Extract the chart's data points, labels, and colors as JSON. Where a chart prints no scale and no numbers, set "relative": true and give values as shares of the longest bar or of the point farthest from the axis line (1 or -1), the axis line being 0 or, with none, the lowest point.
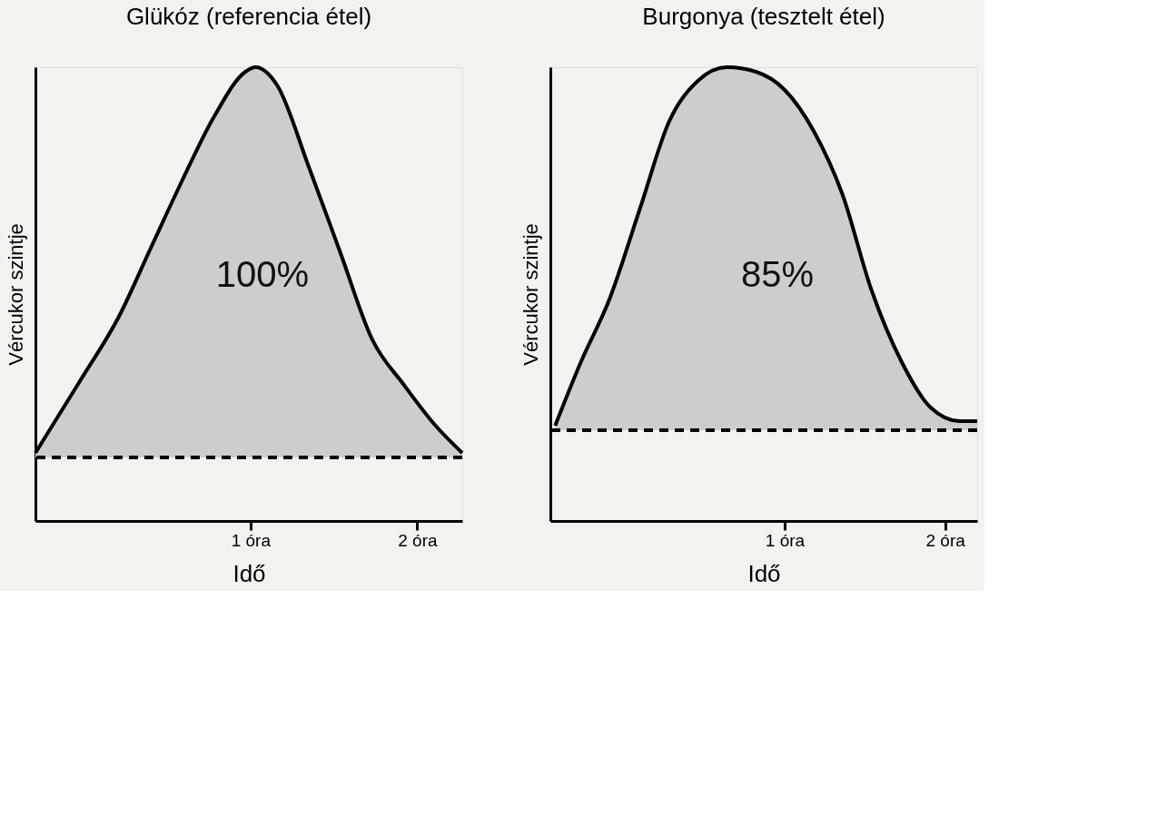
{
  "chart_data": [
    {
      "type": "area",
      "title": "Glükóz (referencia étel)",
      "xlabel": "Idő",
      "ylabel": "Vércukor szintje",
      "relative": true,
      "xlim": [
        -0.29,
        2.27
      ],
      "xticks": [
        {
          "value": 1,
          "label": "1 óra"
        },
        {
          "value": 2,
          "label": "2 óra"
        }
      ],
      "tick_labels": "x",
      "grid": false,
      "x": [
        -0.29,
        -0.02,
        0.21,
        0.4,
        0.59,
        0.78,
        0.97,
        1.03,
        1.16,
        1.35,
        1.54,
        1.73,
        1.92,
        2.11,
        2.27
      ],
      "series": [
        {
          "color": "#cdcdcd",
          "values": [
            0.15,
            0.31,
            0.45,
            0.6,
            0.75,
            0.89,
            0.99,
            1.0,
            0.96,
            0.78,
            0.59,
            0.4,
            0.3,
            0.21,
            0.15
          ]
        }
      ],
      "ref_lines": [
        {
          "axis": "y",
          "value": 0.14,
          "line_style": "dashed"
        }
      ],
      "annotations": [
        "100%"
      ]
    },
    {
      "type": "area",
      "title": "Burgonya (tesztelt étel)",
      "xlabel": "Idő",
      "ylabel": "Vércukor szintje",
      "relative": true,
      "xlim": [
        -0.46,
        2.2
      ],
      "xticks": [
        {
          "value": 1,
          "label": "1 óra"
        },
        {
          "value": 2,
          "label": "2 óra"
        }
      ],
      "tick_labels": "x",
      "grid": false,
      "x": [
        -0.43,
        -0.27,
        -0.09,
        0.1,
        0.28,
        0.46,
        0.64,
        0.82,
        1.0,
        1.18,
        1.36,
        1.54,
        1.73,
        1.91,
        2.09,
        2.2
      ],
      "series": [
        {
          "color": "#cdcdcd",
          "values": [
            0.21,
            0.35,
            0.49,
            0.69,
            0.88,
            0.97,
            1.0,
            0.99,
            0.95,
            0.86,
            0.72,
            0.51,
            0.35,
            0.25,
            0.22,
            0.22
          ]
        }
      ],
      "ref_lines": [
        {
          "axis": "y",
          "value": 0.2,
          "line_style": "dashed"
        }
      ],
      "annotations": [
        "85%"
      ]
    }
  ]
}
